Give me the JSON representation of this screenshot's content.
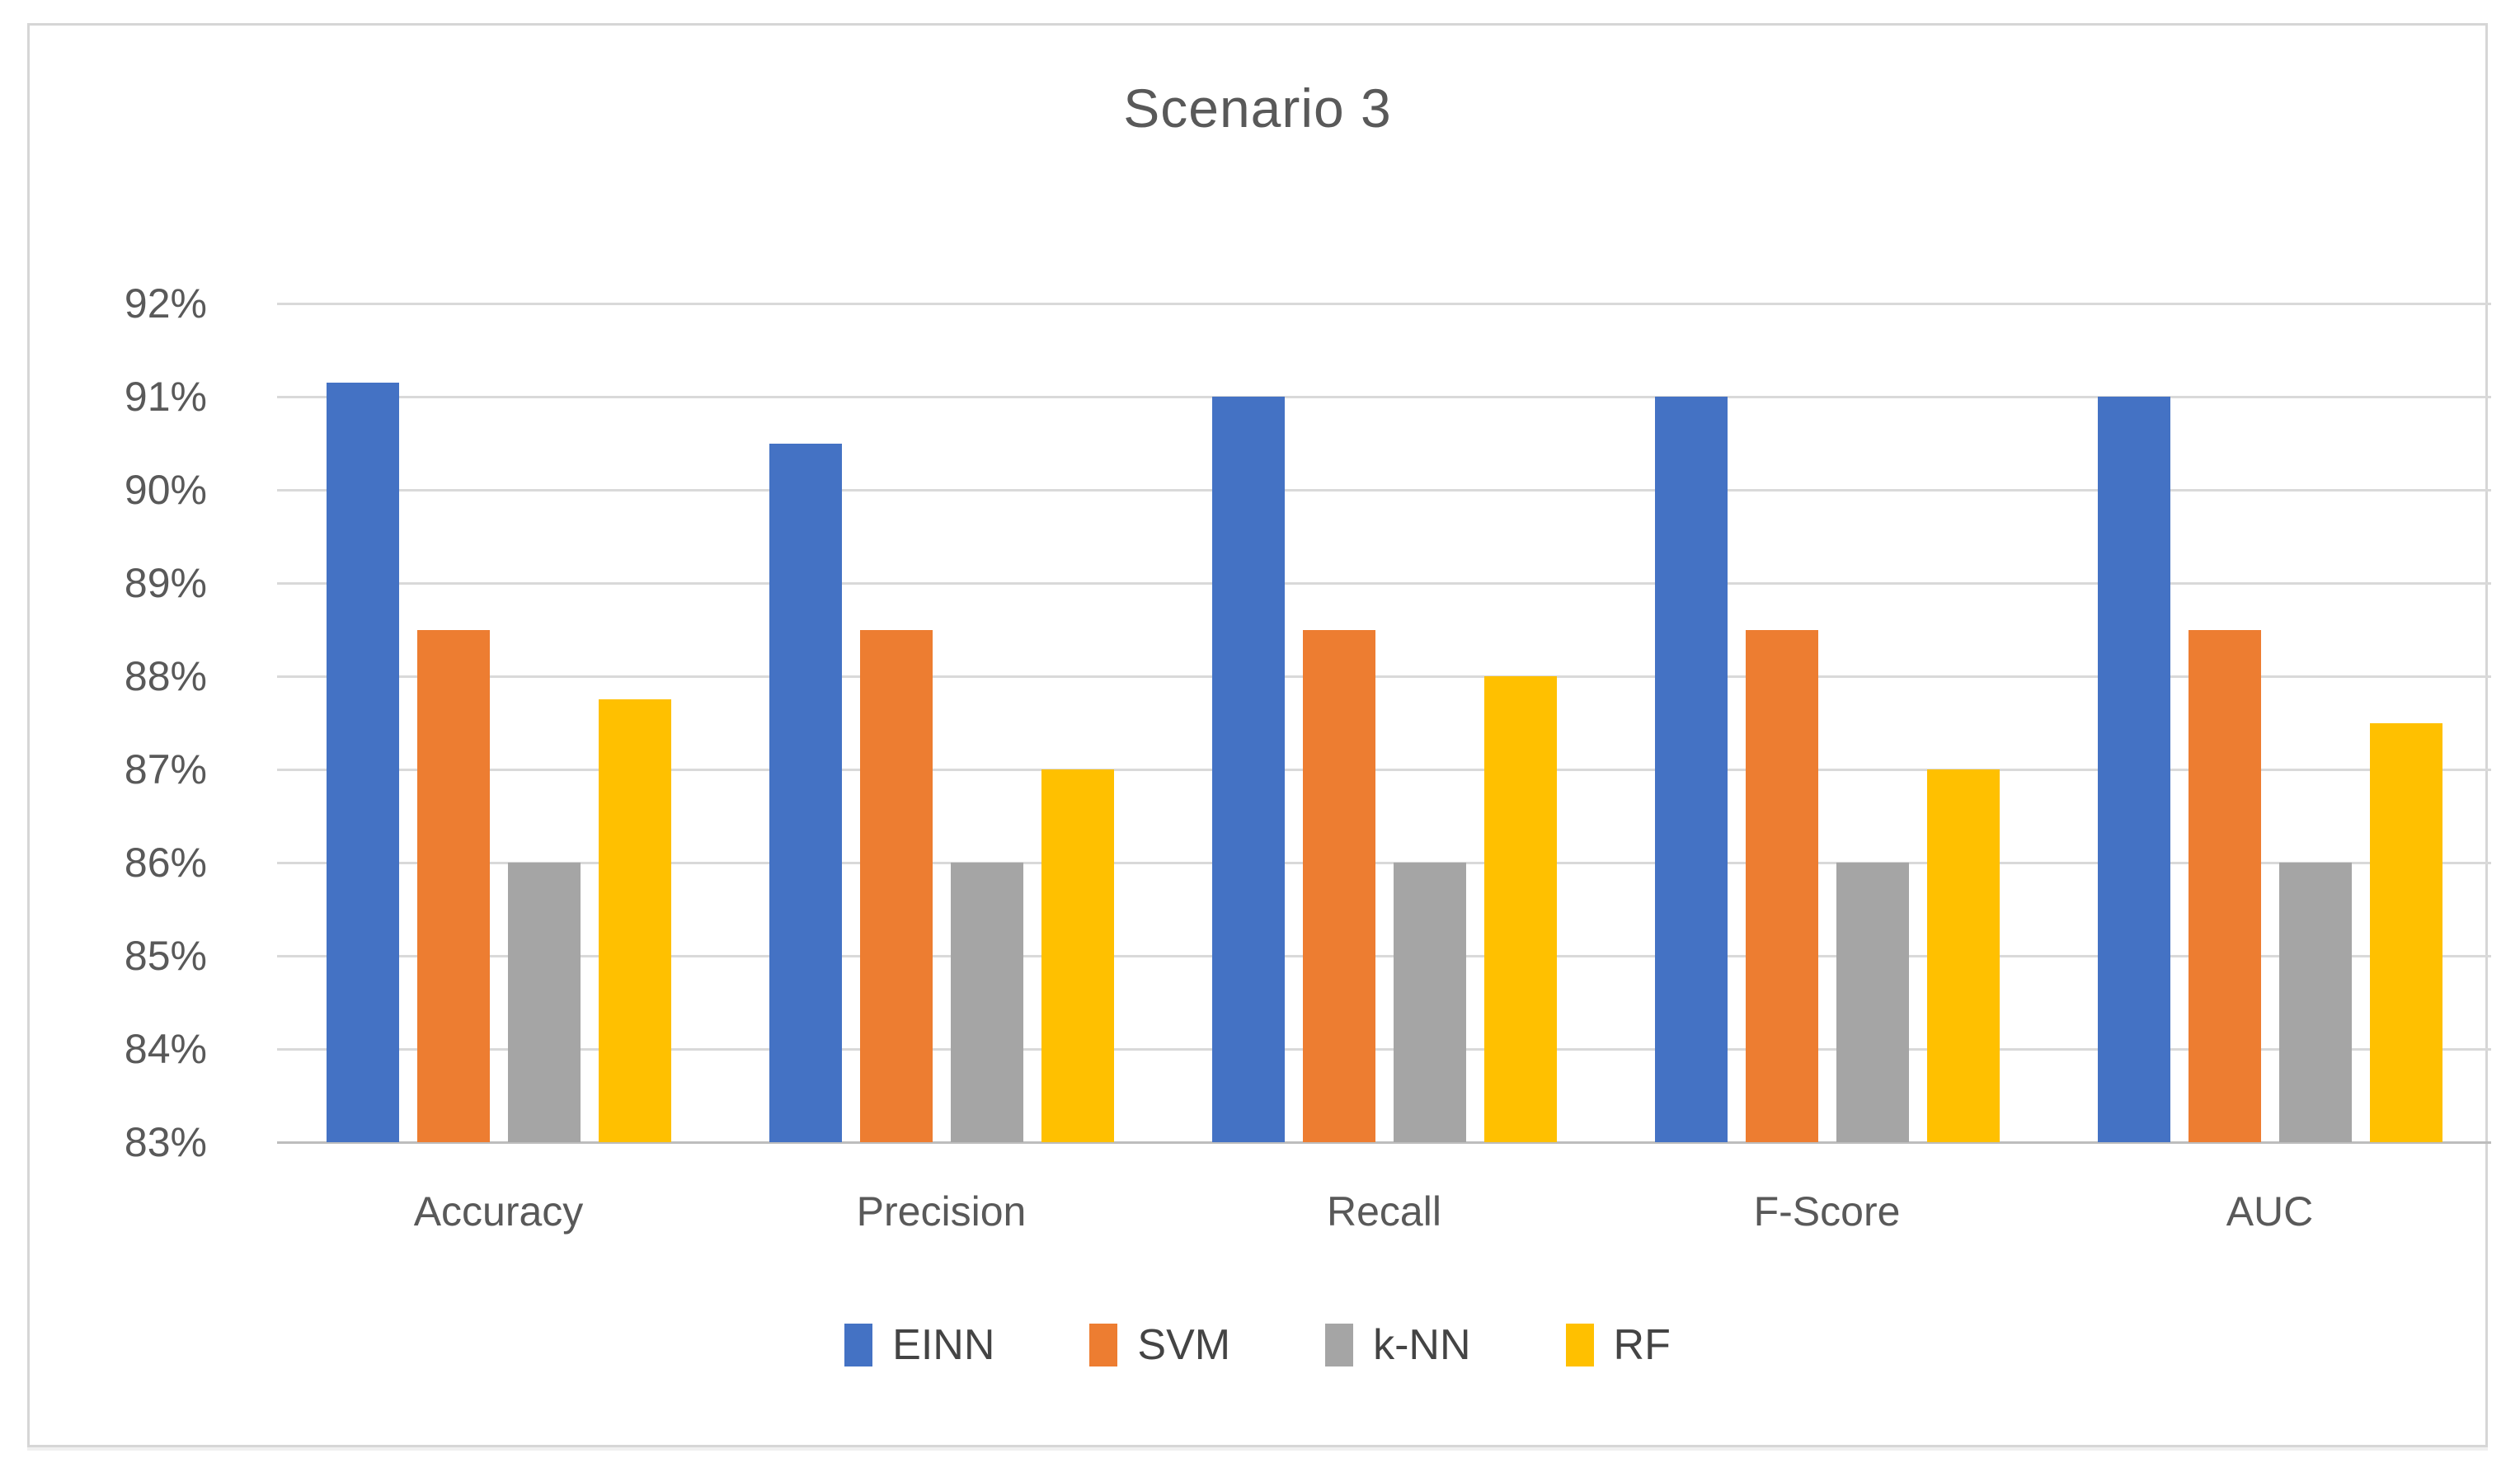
{
  "chart_data": {
    "type": "bar",
    "title": "Scenario 3",
    "categories": [
      "Accuracy",
      "Precision",
      "Recall",
      "F-Score",
      "AUC"
    ],
    "series": [
      {
        "name": "EINN",
        "color": "#4472C4",
        "values": [
          91.15,
          90.5,
          91,
          91,
          91
        ]
      },
      {
        "name": "SVM",
        "color": "#ED7D31",
        "values": [
          88.5,
          88.5,
          88.5,
          88.5,
          88.5
        ]
      },
      {
        "name": "k-NN",
        "color": "#A5A5A5",
        "values": [
          86,
          86,
          86,
          86,
          86
        ]
      },
      {
        "name": "RF",
        "color": "#FFC000",
        "values": [
          87.75,
          87,
          88,
          87,
          87.5
        ]
      }
    ],
    "xlabel": "",
    "ylabel": "",
    "ylim": [
      83,
      92
    ],
    "y_ticks_top_to_bottom": [
      "92%",
      "91%",
      "90%",
      "89%",
      "88%",
      "87%",
      "86%",
      "85%",
      "84%",
      "83%"
    ],
    "grid": true,
    "legend_position": "bottom",
    "colors": {
      "grid_line": "#d9d9d9",
      "axis_line": "#bdbdbd",
      "text": "#595959",
      "frame_border": "#d6d6d6",
      "background": "#ffffff"
    }
  }
}
